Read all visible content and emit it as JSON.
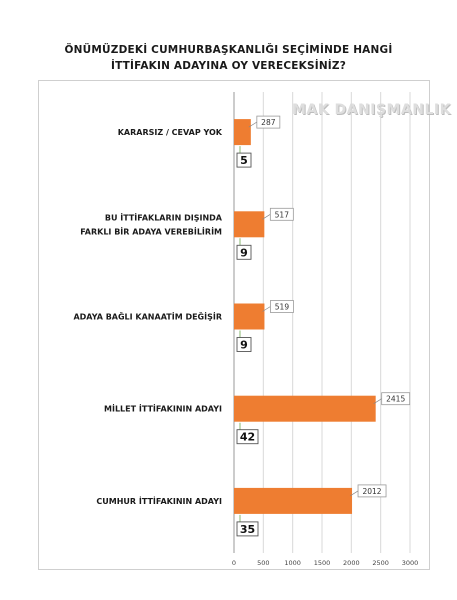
{
  "title_lines": [
    "ÖNÜMÜZDEKİ CUMHURBAŞKANLIĞI SEÇİMİNDE HANGİ",
    "İTTİFAKIN ADAYINA OY VERECEKSİNİZ?"
  ],
  "watermark": "MAK DANIŞMANLIK",
  "chart_data": {
    "type": "bar",
    "orientation": "horizontal",
    "title": "ÖNÜMÜZDEKİ CUMHURBAŞKANLIĞI SEÇİMİNDE HANGİ İTTİFAKIN ADAYINA OY VERECEKSİNİZ?",
    "categories": [
      [
        "KARARSIZ / CEVAP YOK"
      ],
      [
        "BU İTTİFAKLARIN DIŞINDA",
        "FARKLI BİR ADAYA VEREBİLİRİM"
      ],
      [
        "ADAYA BAĞLI KANAATİM DEĞİŞİR"
      ],
      [
        "MİLLET İTTİFAKININ ADAYI"
      ],
      [
        "CUMHUR İTTİFAKININ ADAYI"
      ]
    ],
    "values": [
      287,
      517,
      519,
      2415,
      2012
    ],
    "percent_labels": [
      "5",
      "9",
      "9",
      "42",
      "35"
    ],
    "xlim": [
      0,
      3000
    ],
    "xticks": [
      "0",
      "500",
      "1000",
      "1500",
      "2000",
      "2500",
      "3000"
    ],
    "grid": true,
    "bar_color": "#ee7d31",
    "xlabel": "",
    "ylabel": ""
  }
}
